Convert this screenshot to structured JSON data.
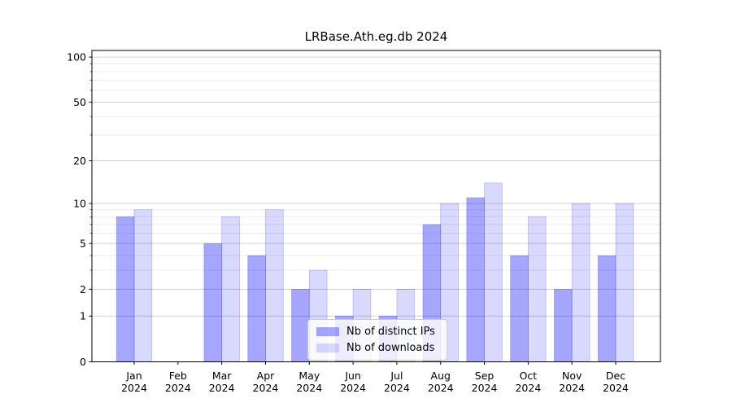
{
  "chart_data": {
    "type": "bar",
    "title": "LRBase.Ath.eg.db 2024",
    "x_ticks": [
      {
        "line1": "Jan",
        "line2": "2024"
      },
      {
        "line1": "Feb",
        "line2": "2024"
      },
      {
        "line1": "Mar",
        "line2": "2024"
      },
      {
        "line1": "Apr",
        "line2": "2024"
      },
      {
        "line1": "May",
        "line2": "2024"
      },
      {
        "line1": "Jun",
        "line2": "2024"
      },
      {
        "line1": "Jul",
        "line2": "2024"
      },
      {
        "line1": "Aug",
        "line2": "2024"
      },
      {
        "line1": "Sep",
        "line2": "2024"
      },
      {
        "line1": "Oct",
        "line2": "2024"
      },
      {
        "line1": "Nov",
        "line2": "2024"
      },
      {
        "line1": "Dec",
        "line2": "2024"
      }
    ],
    "series": [
      {
        "name": "Nb of distinct IPs",
        "short": "distinct-ips",
        "fill": "rgba(0,0,255,0.35)",
        "fill_on_white": "#a6a6f2",
        "values": [
          8,
          0,
          5,
          4,
          2,
          1,
          1,
          7,
          11,
          4,
          2,
          4
        ]
      },
      {
        "name": "Nb of downloads",
        "short": "downloads",
        "fill": "rgba(0,0,255,0.15)",
        "fill_on_white": "#d9d9f7",
        "values": [
          9,
          0,
          8,
          9,
          3,
          2,
          2,
          10,
          14,
          8,
          10,
          10
        ]
      }
    ],
    "y_axis": {
      "scale": "log10(1+x)",
      "major_ticks": [
        0,
        1,
        2,
        5,
        10,
        20,
        50,
        100
      ],
      "minor_gridlines": [
        3,
        4,
        6,
        7,
        8,
        9,
        30,
        40,
        60,
        70,
        80,
        90
      ],
      "ylim": [
        0,
        110
      ]
    },
    "legend": {
      "position": "lower center"
    },
    "grid": {
      "major_color": "#d2d2d2",
      "minor_color": "#ececec"
    },
    "axis_color": "#000000"
  }
}
